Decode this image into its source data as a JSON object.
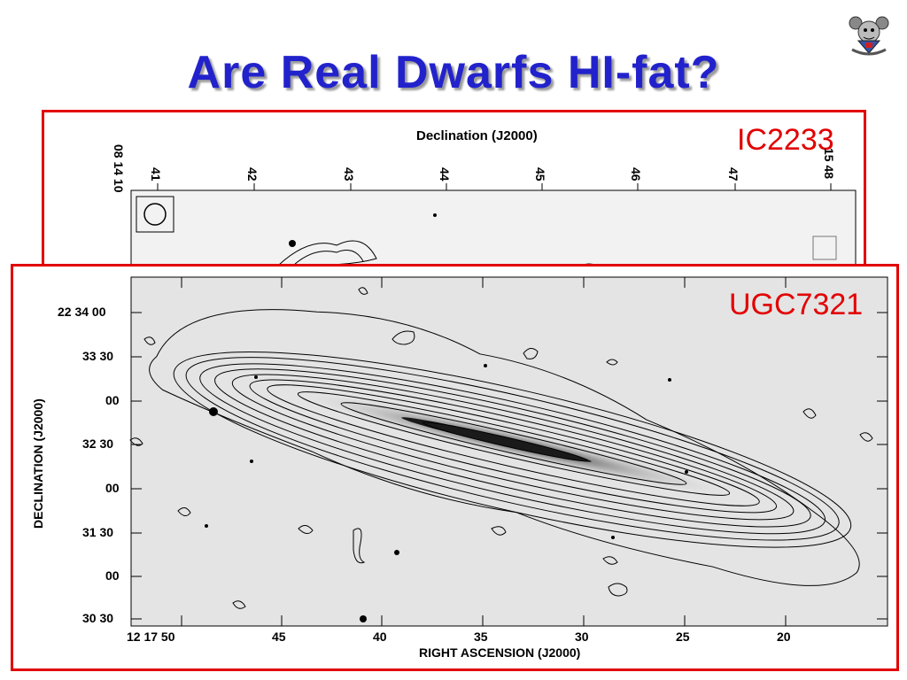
{
  "slide": {
    "title": "Are Real Dwarfs HI-fat?",
    "logo_icon": "university-crest"
  },
  "top_panel": {
    "label": "IC2233",
    "x_axis_title": "Declination (J2000)",
    "corner_tick": "08 14 10",
    "ticks": [
      "41",
      "42",
      "43",
      "44",
      "45",
      "46",
      "47",
      "15 48"
    ]
  },
  "bottom_panel": {
    "label": "UGC7321",
    "y_axis_title": "DECLINATION (J2000)",
    "x_axis_title": "RIGHT ASCENSION (J2000)",
    "y_ticks": [
      "22 34 00",
      "33 30",
      "00",
      "32 30",
      "00",
      "31 30",
      "00",
      "30 30"
    ],
    "x_ticks": [
      "12 17 50",
      "45",
      "40",
      "35",
      "30",
      "25",
      "20"
    ]
  },
  "colors": {
    "title": "#2222cc",
    "frame": "#e20000",
    "labels": "#e20000"
  }
}
